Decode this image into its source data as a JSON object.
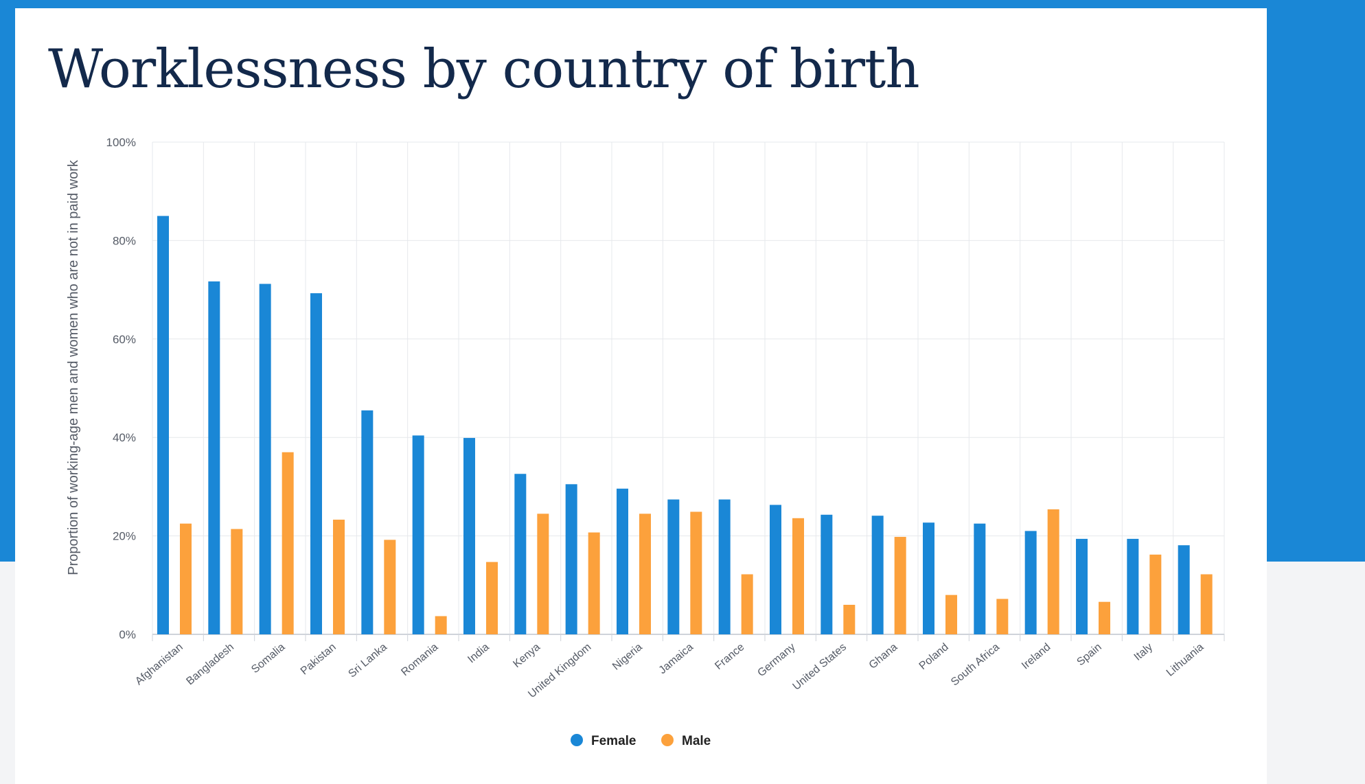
{
  "page": {
    "title": "Worklessness by country of birth"
  },
  "colors": {
    "band": "#1a87d6",
    "female": "#1a87d6",
    "male": "#fca13c",
    "grid": "#e6e8ec",
    "axis": "#cfd3da"
  },
  "chart_data": {
    "type": "bar",
    "title": "Worklessness by country of birth",
    "ylabel": "Proportion of working-age men and women who are not in paid work",
    "xlabel": "",
    "ylim": [
      0,
      100
    ],
    "yticks": [
      0,
      20,
      40,
      60,
      80,
      100
    ],
    "ytick_suffix": "%",
    "grid": true,
    "legend_position": "bottom-center",
    "categories": [
      "Afghanistan",
      "Bangladesh",
      "Somalia",
      "Pakistan",
      "Sri Lanka",
      "Romania",
      "India",
      "Kenya",
      "United Kingdom",
      "Nigeria",
      "Jamaica",
      "France",
      "Germany",
      "United States",
      "Ghana",
      "Poland",
      "South Africa",
      "Ireland",
      "Spain",
      "Italy",
      "Lithuania"
    ],
    "series": [
      {
        "name": "Female",
        "color": "#1a87d6",
        "values": [
          85,
          71.7,
          71.2,
          69.3,
          45.5,
          40.4,
          39.9,
          32.6,
          30.5,
          29.6,
          27.4,
          27.4,
          26.3,
          24.3,
          24.1,
          22.7,
          22.5,
          21.0,
          19.4,
          19.4,
          18.1
        ]
      },
      {
        "name": "Male",
        "color": "#fca13c",
        "values": [
          22.5,
          21.4,
          37.0,
          23.3,
          19.2,
          3.7,
          14.7,
          24.5,
          20.7,
          24.5,
          24.9,
          12.2,
          23.6,
          6.0,
          19.8,
          8.0,
          7.2,
          25.4,
          6.6,
          16.2,
          12.2
        ]
      }
    ]
  }
}
